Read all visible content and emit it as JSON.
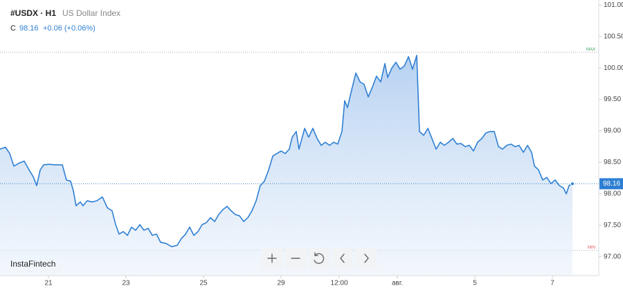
{
  "chart_data": {
    "type": "line",
    "symbol": "#USDX · H1",
    "title": "US Dollar Index",
    "close_label": "C",
    "change": "+0.06 (+0.06%)",
    "brand": "InstaFintech",
    "max_line": {
      "label": "MAX",
      "value": 100.25
    },
    "min_line": {
      "label": "MIN",
      "value": 97.1
    },
    "x": [
      0,
      3.4,
      6,
      8.6,
      12,
      15,
      18,
      20.6,
      22.7,
      24.9,
      27,
      30,
      34.3,
      38.6,
      41.1,
      43.7,
      45.4,
      47.1,
      49.7,
      51.4,
      54,
      57,
      60,
      63.4,
      66.4,
      69.4,
      71.6,
      73.7,
      76.3,
      78.9,
      81.4,
      84,
      86.6,
      89.1,
      91.7,
      94.3,
      96.9,
      99.4,
      102.9,
      106.3,
      109.7,
      112.3,
      114.9,
      117.4,
      120,
      122.6,
      125.1,
      127.7,
      130.3,
      132.9,
      135.4,
      138,
      140.6,
      143.1,
      145.7,
      148.3,
      150.9,
      153.4,
      156,
      158.6,
      161.1,
      163.7,
      166.3,
      168.9,
      171.4,
      174,
      176.6,
      179.1,
      180.9,
      183.4,
      185.1,
      186.9,
      188.6,
      191.1,
      193.7,
      196.3,
      198.9,
      201.4,
      204,
      206.6,
      209.1,
      211.7,
      213.4,
      215.1,
      217.7,
      220.3,
      222.9,
      225.4,
      228,
      230.6,
      233.1,
      235.7,
      238.3,
      240,
      242.6,
      245.1,
      247.7,
      250.3,
      252.9,
      255.4,
      258,
      259.7,
      262.3,
      264.9,
      267.4,
      270,
      272.6,
      275.1,
      277.7,
      280.3,
      282.9,
      285.4,
      288,
      290.6,
      293.1,
      295.7,
      298.3,
      300.9,
      303.4,
      306,
      308.6,
      311.1,
      313.7,
      316.3,
      318.9,
      321.4,
      324,
      326.6,
      329.1,
      330.9,
      333.4,
      336,
      338.6,
      341.1,
      343.7,
      346.3,
      348.9,
      350.6,
      352.3,
      354.4
    ],
    "series": [
      {
        "name": "USDX",
        "color": "#2e7fd3",
        "values": [
          98.71,
          98.74,
          98.64,
          98.44,
          98.49,
          98.52,
          98.38,
          98.27,
          98.13,
          98.38,
          98.46,
          98.47,
          98.46,
          98.46,
          98.22,
          98.2,
          98.05,
          97.81,
          97.87,
          97.81,
          97.89,
          97.87,
          97.89,
          97.95,
          97.78,
          97.73,
          97.51,
          97.36,
          97.4,
          97.34,
          97.47,
          97.42,
          97.51,
          97.42,
          97.45,
          97.34,
          97.36,
          97.23,
          97.21,
          97.16,
          97.18,
          97.29,
          97.36,
          97.47,
          97.34,
          97.4,
          97.51,
          97.54,
          97.62,
          97.56,
          97.67,
          97.75,
          97.8,
          97.73,
          97.67,
          97.65,
          97.56,
          97.62,
          97.73,
          97.89,
          98.13,
          98.2,
          98.38,
          98.6,
          98.64,
          98.68,
          98.64,
          98.71,
          98.9,
          98.99,
          98.71,
          98.88,
          99.04,
          98.9,
          99.04,
          98.88,
          98.77,
          98.82,
          98.77,
          98.82,
          98.79,
          98.99,
          99.48,
          99.37,
          99.65,
          99.92,
          99.78,
          99.74,
          99.54,
          99.7,
          99.87,
          99.78,
          100.07,
          99.85,
          100.0,
          100.09,
          99.98,
          100.03,
          100.18,
          99.98,
          100.2,
          98.99,
          98.93,
          99.04,
          98.88,
          98.71,
          98.82,
          98.77,
          98.82,
          98.88,
          98.79,
          98.8,
          98.75,
          98.77,
          98.68,
          98.82,
          98.88,
          98.97,
          98.99,
          98.99,
          98.75,
          98.71,
          98.77,
          98.79,
          98.75,
          98.77,
          98.66,
          98.77,
          98.66,
          98.44,
          98.38,
          98.22,
          98.26,
          98.16,
          98.22,
          98.13,
          98.09,
          98.0,
          98.13,
          98.16
        ]
      }
    ],
    "xlim": [
      0,
      370.7
    ],
    "xticks": [
      {
        "value": 30,
        "label": "21"
      },
      {
        "value": 78,
        "label": "23"
      },
      {
        "value": 126,
        "label": "25"
      },
      {
        "value": 174,
        "label": "29"
      },
      {
        "value": 210,
        "label": "12:00"
      },
      {
        "value": 246,
        "label": "авг."
      },
      {
        "value": 294,
        "label": "5"
      },
      {
        "value": 342,
        "label": "7"
      }
    ],
    "ylim": [
      96.7,
      101.08
    ],
    "yticks": [
      {
        "value": 97,
        "label": "97.00"
      },
      {
        "value": 97.5,
        "label": "97.50"
      },
      {
        "value": 98,
        "label": "98.00"
      },
      {
        "value": 98.5,
        "label": "98.50"
      },
      {
        "value": 99,
        "label": "99.00"
      },
      {
        "value": 99.5,
        "label": "99.50"
      },
      {
        "value": 100,
        "label": "100.00"
      },
      {
        "value": 100.5,
        "label": "100.50"
      },
      {
        "value": 101,
        "label": "101.00"
      }
    ],
    "last_value_label": "98.16",
    "grid": false
  }
}
